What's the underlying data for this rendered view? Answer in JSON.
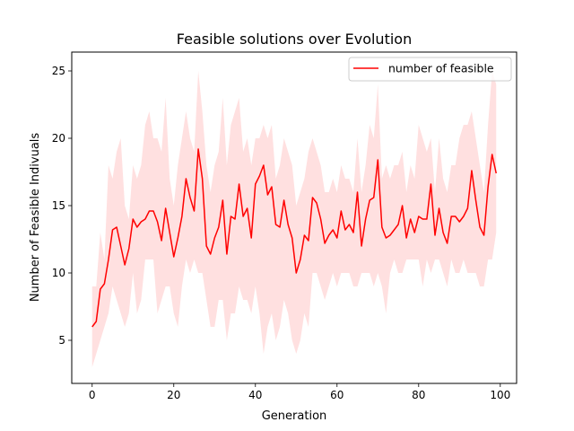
{
  "chart_data": {
    "type": "line",
    "title": "Feasible solutions over Evolution",
    "xlabel": "Generation",
    "ylabel": "Number of Feasible Indivuals",
    "xlim": [
      -5,
      104
    ],
    "ylim": [
      1.8,
      26.4
    ],
    "xticks": [
      0,
      20,
      40,
      60,
      80,
      100
    ],
    "yticks": [
      5,
      10,
      15,
      20,
      25
    ],
    "grid": false,
    "legend_position": "top-right",
    "series": [
      {
        "name": "number of feasible",
        "color": "#ff0000",
        "band_color": "#ffcccc",
        "x": [
          0,
          1,
          2,
          3,
          4,
          5,
          6,
          7,
          8,
          9,
          10,
          11,
          12,
          13,
          14,
          15,
          16,
          17,
          18,
          19,
          20,
          21,
          22,
          23,
          24,
          25,
          26,
          27,
          28,
          29,
          30,
          31,
          32,
          33,
          34,
          35,
          36,
          37,
          38,
          39,
          40,
          41,
          42,
          43,
          44,
          45,
          46,
          47,
          48,
          49,
          50,
          51,
          52,
          53,
          54,
          55,
          56,
          57,
          58,
          59,
          60,
          61,
          62,
          63,
          64,
          65,
          66,
          67,
          68,
          69,
          70,
          71,
          72,
          73,
          74,
          75,
          76,
          77,
          78,
          79,
          80,
          81,
          82,
          83,
          84,
          85,
          86,
          87,
          88,
          89,
          90,
          91,
          92,
          93,
          94,
          95,
          96,
          97,
          98,
          99
        ],
        "y": [
          6.0,
          6.4,
          8.8,
          9.2,
          11.0,
          13.2,
          13.4,
          12.0,
          10.6,
          11.8,
          14.0,
          13.4,
          13.8,
          14.0,
          14.6,
          14.6,
          13.8,
          12.4,
          14.8,
          13.0,
          11.2,
          12.6,
          14.2,
          17.0,
          15.6,
          14.6,
          19.2,
          17.0,
          12.0,
          11.4,
          12.6,
          13.4,
          15.4,
          11.4,
          14.2,
          14.0,
          16.6,
          14.2,
          14.8,
          12.6,
          16.6,
          17.2,
          18.0,
          15.8,
          16.4,
          13.6,
          13.4,
          15.4,
          13.6,
          12.6,
          10.0,
          11.0,
          12.8,
          12.4,
          15.6,
          15.2,
          14.0,
          12.2,
          12.8,
          13.2,
          12.6,
          14.6,
          13.2,
          13.6,
          13.0,
          16.0,
          12.0,
          14.0,
          15.4,
          15.6,
          18.4,
          13.4,
          12.6,
          12.8,
          13.2,
          13.6,
          15.0,
          12.6,
          14.0,
          13.0,
          14.2,
          14.0,
          14.0,
          16.6,
          12.8,
          14.8,
          13.0,
          12.2,
          14.2,
          14.2,
          13.8,
          14.2,
          14.8,
          17.6,
          15.4,
          13.4,
          12.8,
          16.4,
          18.8,
          17.4
        ],
        "lower": [
          3.0,
          4.0,
          5.0,
          6.0,
          7.0,
          9.0,
          8.0,
          7.0,
          6.0,
          7.0,
          10.0,
          7.0,
          8.0,
          11.0,
          11.0,
          11.0,
          7.0,
          8.0,
          9.0,
          9.0,
          7.0,
          6.0,
          9.0,
          11.0,
          10.0,
          11.0,
          10.0,
          10.0,
          8.0,
          6.0,
          6.0,
          8.0,
          8.0,
          5.0,
          7.0,
          7.0,
          9.0,
          8.0,
          8.0,
          7.0,
          9.0,
          7.0,
          4.0,
          6.0,
          7.0,
          5.0,
          6.0,
          8.0,
          7.0,
          5.0,
          4.0,
          5.0,
          7.0,
          6.0,
          10.0,
          10.0,
          9.0,
          8.0,
          9.0,
          10.0,
          9.0,
          10.0,
          10.0,
          10.0,
          9.0,
          9.0,
          10.0,
          10.0,
          10.0,
          9.0,
          10.0,
          9.0,
          7.0,
          10.0,
          11.0,
          10.0,
          10.0,
          11.0,
          11.0,
          11.0,
          11.0,
          9.0,
          11.0,
          10.0,
          11.0,
          11.0,
          10.0,
          9.0,
          11.0,
          10.0,
          10.0,
          11.0,
          10.0,
          10.0,
          10.0,
          9.0,
          9.0,
          11.0,
          11.0,
          13.0
        ],
        "upper": [
          9.0,
          9.0,
          13.0,
          11.0,
          18.0,
          17.0,
          19.0,
          20.0,
          15.0,
          14.0,
          18.0,
          17.0,
          18.0,
          21.0,
          22.0,
          20.0,
          20.0,
          19.0,
          23.0,
          17.0,
          15.0,
          18.0,
          20.0,
          22.0,
          20.0,
          19.0,
          25.0,
          22.0,
          18.0,
          16.0,
          18.0,
          19.0,
          23.0,
          18.0,
          21.0,
          22.0,
          23.0,
          19.0,
          20.0,
          18.0,
          20.0,
          20.0,
          21.0,
          20.0,
          21.0,
          17.0,
          18.0,
          20.0,
          19.0,
          18.0,
          15.0,
          16.0,
          17.0,
          19.0,
          20.0,
          19.0,
          18.0,
          16.0,
          16.0,
          17.0,
          16.0,
          18.0,
          17.0,
          17.0,
          16.0,
          20.0,
          16.0,
          18.0,
          21.0,
          20.0,
          24.0,
          17.0,
          18.0,
          17.0,
          18.0,
          18.0,
          19.0,
          16.0,
          18.0,
          17.0,
          21.0,
          20.0,
          19.0,
          20.0,
          16.0,
          20.0,
          17.0,
          16.0,
          18.0,
          18.0,
          20.0,
          21.0,
          21.0,
          22.0,
          20.0,
          18.0,
          16.0,
          21.0,
          25.0,
          24.0
        ]
      }
    ]
  }
}
